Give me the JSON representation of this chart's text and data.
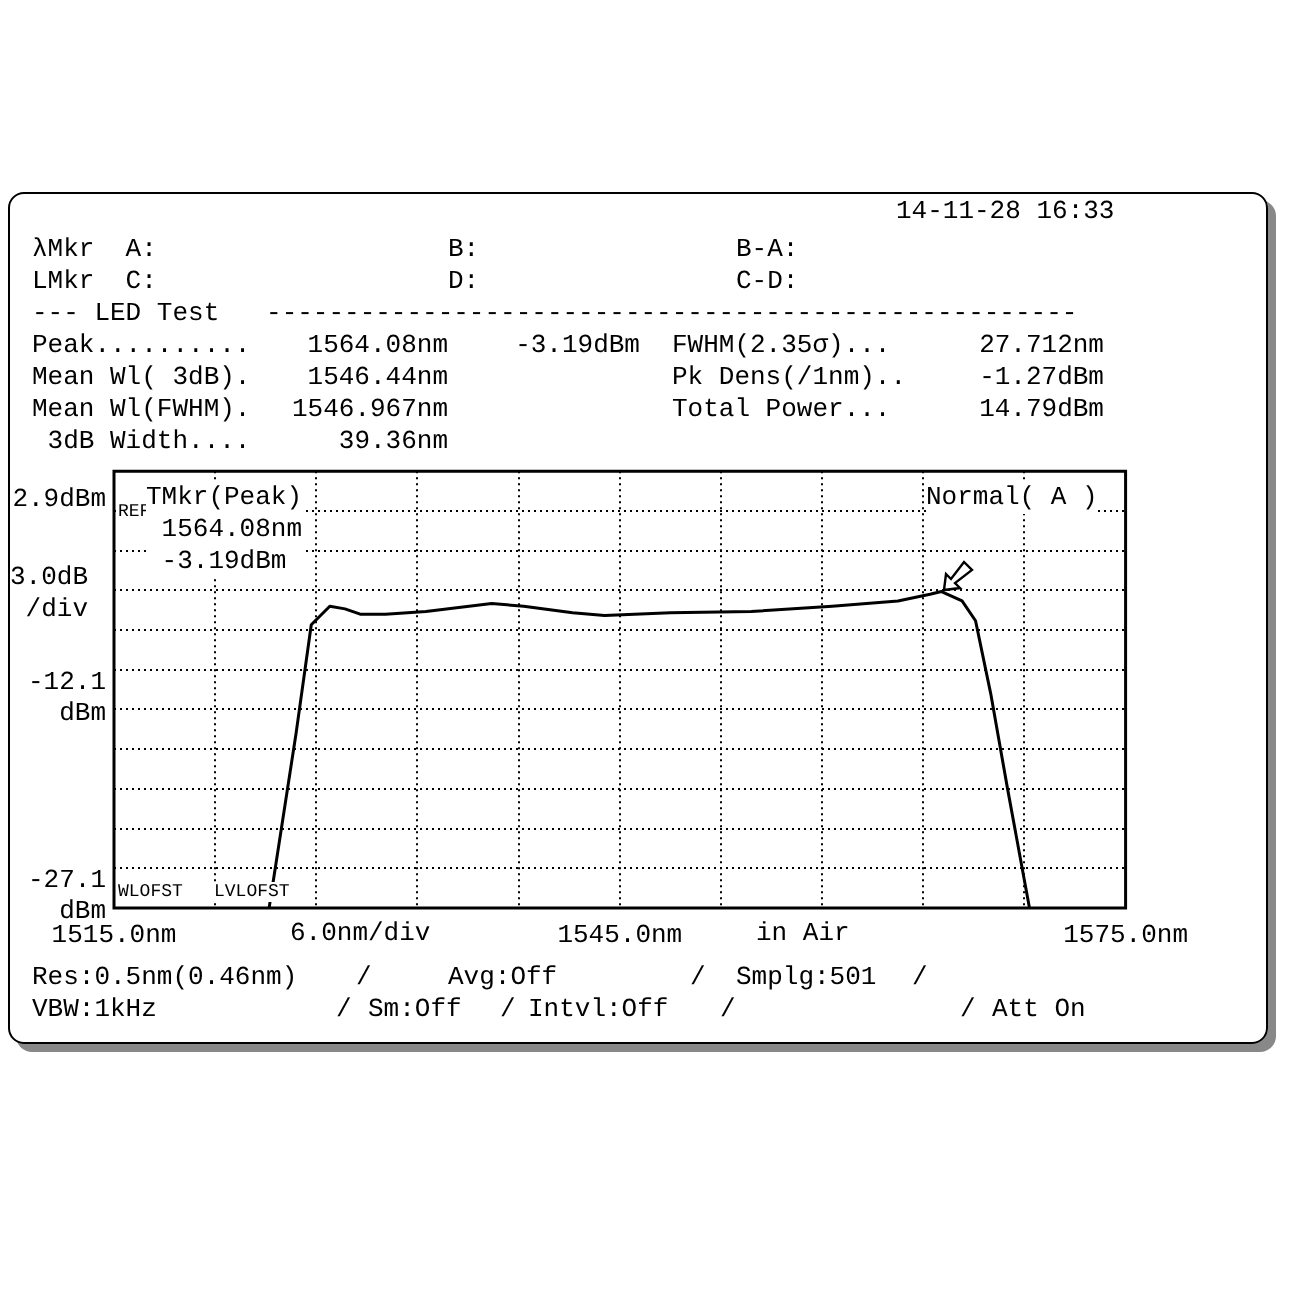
{
  "chart_data": {
    "type": "line",
    "x": [
      1524.2,
      1525.8,
      1526.7,
      1527.8,
      1528.7,
      1529.6,
      1531.1,
      1533.5,
      1537.4,
      1539.3,
      1542.2,
      1544.1,
      1548.0,
      1552.8,
      1557.6,
      1561.5,
      1563.4,
      1564.08,
      1565.3,
      1566.1,
      1567.0,
      1568.0,
      1569.3
    ],
    "series": [
      {
        "color": "#000000",
        "values": [
          -27.1,
          -13.9,
          -5.7,
          -4.3,
          -4.5,
          -4.9,
          -4.9,
          -4.7,
          -4.1,
          -4.3,
          -4.8,
          -5.0,
          -4.8,
          -4.7,
          -4.3,
          -3.9,
          -3.4,
          -3.19,
          -3.9,
          -5.4,
          -10.9,
          -18.1,
          -27.1
        ]
      }
    ],
    "xlim": [
      1515,
      1575
    ],
    "xticks": [
      {
        "value": 1515,
        "label": "1515.0nm"
      },
      {
        "value": 1521,
        "label": null
      },
      {
        "value": 1527,
        "label": null
      },
      {
        "value": 1533,
        "label": null
      },
      {
        "value": 1539,
        "label": null
      },
      {
        "value": 1545,
        "label": "1545.0nm"
      },
      {
        "value": 1551,
        "label": null
      },
      {
        "value": 1557,
        "label": null
      },
      {
        "value": 1563,
        "label": null
      },
      {
        "value": 1569,
        "label": null
      },
      {
        "value": 1575,
        "label": "1575.0nm"
      }
    ],
    "ylim": [
      -27.1,
      5.9
    ],
    "yticks": [
      {
        "value": 5.9,
        "label": null
      },
      {
        "value": 2.9,
        "label": "2.9dBm"
      },
      {
        "value": -0.1,
        "label": null
      },
      {
        "value": -3.1,
        "label": null
      },
      {
        "value": -6.1,
        "label": null
      },
      {
        "value": -9.1,
        "label": null
      },
      {
        "value": -12.1,
        "label": "-12.1\ndBm"
      },
      {
        "value": -15.1,
        "label": null
      },
      {
        "value": -18.1,
        "label": null
      },
      {
        "value": -21.1,
        "label": null
      },
      {
        "value": -24.1,
        "label": null
      },
      {
        "value": -27.1,
        "label": "-27.1\ndBm"
      }
    ],
    "grid": true,
    "xlabel": "6.0nm/div",
    "ylabel": "3.0dB\n/div",
    "annotations": [
      "14-11-28 16:33",
      "λMkr  A:",
      "B:",
      "B-A:",
      "LMkr  C:",
      "D:",
      "C-D:",
      "--- LED Test   ----------------------------------------------------",
      "Peak..........",
      "1564.08nm",
      "-3.19dBm",
      "FWHM(2.35σ)...",
      "27.712nm",
      "Mean Wl( 3dB).",
      "1546.44nm",
      "Pk Dens(/1nm)..",
      "-1.27dBm",
      "Mean Wl(FWHM).",
      "1546.967nm",
      "Total Power...",
      "14.79dBm",
      " 3dB Width....",
      "39.36nm",
      "REF",
      "TMkr(Peak)\n 1564.08nm\n -3.19dBm",
      "Normal( A )",
      "WLOFST",
      "LVLOFST",
      "in Air",
      "Res:0.5nm(0.46nm)",
      "/",
      "Avg:Off",
      "/",
      "Smplg:501",
      "/",
      "VBW:1kHz",
      "/",
      "Sm:Off",
      "/",
      "Intvl:Off",
      "/",
      "/",
      "Att On"
    ]
  }
}
